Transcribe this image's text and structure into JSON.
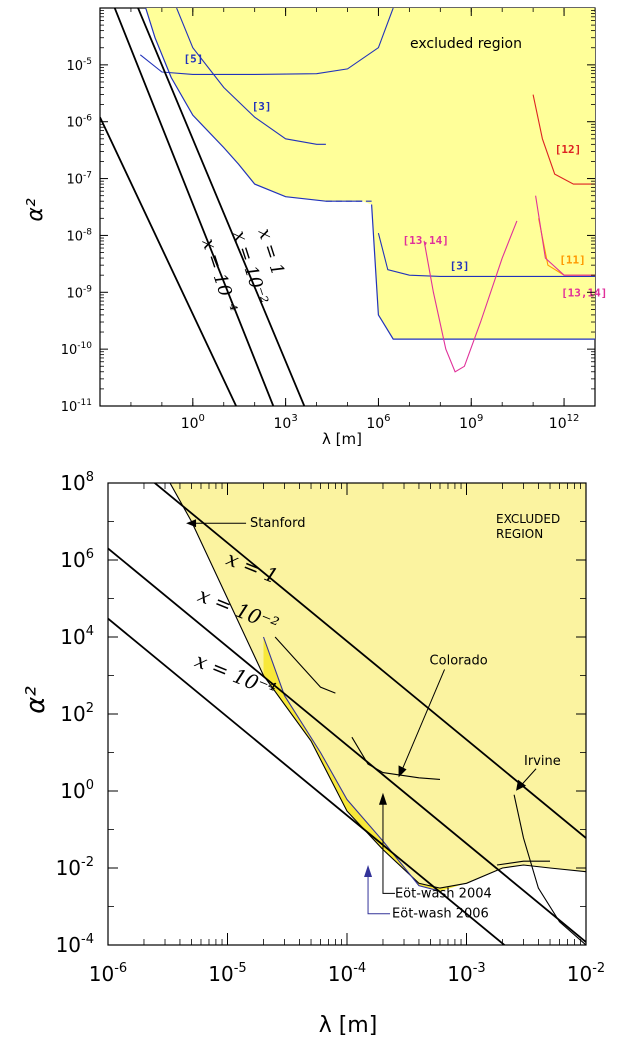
{
  "chart_data": [
    {
      "type": "line",
      "xlabel": "λ [m]",
      "ylabel": "α²",
      "xscale": "log",
      "yscale": "log",
      "xlim": [
        0.001,
        10000000000000
      ],
      "ylim": [
        1e-11,
        0.0001
      ],
      "x_ticks": [
        {
          "exp": "0",
          "value": 1
        },
        {
          "exp": "3",
          "value": 1000
        },
        {
          "exp": "6",
          "value": 1000000
        },
        {
          "exp": "9",
          "value": 1000000000
        },
        {
          "exp": "12",
          "value": 1000000000000
        }
      ],
      "y_ticks": [
        {
          "exp": "-5",
          "value": 1e-05
        },
        {
          "exp": "-6",
          "value": 1e-06
        },
        {
          "exp": "-7",
          "value": 1e-07
        },
        {
          "exp": "-8",
          "value": 1e-08
        },
        {
          "exp": "-9",
          "value": 1e-09
        },
        {
          "exp": "-10",
          "value": 1e-10
        },
        {
          "exp": "-11",
          "value": 1e-11
        }
      ],
      "region_label": "excluded region",
      "excluded_boundary": [
        [
          0.03,
          0.0001
        ],
        [
          0.06,
          3e-05
        ],
        [
          0.2,
          6e-06
        ],
        [
          1,
          1.3e-06
        ],
        [
          10,
          3.5e-07
        ],
        [
          30,
          1.8e-07
        ],
        [
          100,
          8e-08
        ],
        [
          1000,
          4.8e-08
        ],
        [
          20000,
          4e-08
        ],
        [
          300000,
          4e-08
        ],
        [
          600000,
          3.5e-08
        ],
        [
          1000000,
          4e-10
        ],
        [
          3000000,
          1.5e-10
        ],
        [
          10000000000000,
          1.5e-10
        ]
      ],
      "series": [
        {
          "name": "[5]",
          "color": "#2233bb",
          "points": [
            [
              0.02,
              1.5e-05
            ],
            [
              0.1,
              7.5e-06
            ],
            [
              1,
              6.8e-06
            ],
            [
              10,
              6.8e-06
            ],
            [
              100,
              6.8e-06
            ],
            [
              10000,
              7e-06
            ],
            [
              100000,
              8.5e-06
            ],
            [
              1000000,
              2e-05
            ],
            [
              3000000,
              0.0001
            ]
          ]
        },
        {
          "name": "[3]",
          "color": "#2233bb",
          "points": [
            [
              0.3,
              0.0001
            ],
            [
              1,
              2e-05
            ],
            [
              10,
              4e-06
            ],
            [
              100,
              1.2e-06
            ],
            [
              1000,
              5e-07
            ],
            [
              10000,
              4e-07
            ],
            [
              20000,
              4e-07
            ]
          ]
        },
        {
          "name": "[3]",
          "color": "#2233bb",
          "points": [
            [
              1000000,
              1.1e-08
            ],
            [
              2000000,
              2.5e-09
            ],
            [
              10000000,
              2e-09
            ],
            [
              100000000,
              1.9e-09
            ],
            [
              10000000000000,
              1.9e-09
            ]
          ]
        },
        {
          "name": "[13,14]",
          "color": "#e0309a",
          "points": [
            [
              30000000,
              8e-09
            ],
            [
              60000000,
              1e-09
            ],
            [
              150000000,
              1e-10
            ],
            [
              300000000,
              4e-11
            ],
            [
              600000000,
              5e-11
            ],
            [
              2000000000,
              3e-10
            ],
            [
              10000000000,
              4e-09
            ],
            [
              30000000000,
              1.8e-08
            ]
          ]
        },
        {
          "name": "[12]",
          "color": "#dd2222",
          "points": [
            [
              100000000000,
              3e-06
            ],
            [
              200000000000,
              5e-07
            ],
            [
              500000000000,
              1.2e-07
            ],
            [
              2000000000000,
              8e-08
            ],
            [
              10000000000000,
              8e-08
            ]
          ]
        },
        {
          "name": "[11]",
          "color": "#ff9900",
          "points": [
            [
              150000000000,
              2e-08
            ],
            [
              300000000000,
              3e-09
            ],
            [
              1000000000000,
              2e-09
            ],
            [
              10000000000000,
              2e-09
            ]
          ]
        },
        {
          "name": "[13,14]",
          "color": "#e0309a",
          "points": [
            [
              120000000000,
              5e-08
            ],
            [
              250000000000,
              4e-09
            ],
            [
              1000000000000,
              2e-09
            ],
            [
              10000000000000,
              2e-09
            ]
          ]
        }
      ],
      "dashed_segment": [
        [
          20000,
          4e-08
        ],
        [
          600000,
          4e-08
        ]
      ],
      "x_lines": [
        {
          "label": "x = 1",
          "points": [
            [
              0.01,
              0.0002
            ],
            [
              4000,
              1e-11
            ]
          ]
        },
        {
          "label": "x = 10⁻²",
          "points": [
            [
              0.0018,
              0.0002
            ],
            [
              400,
              1e-11
            ]
          ]
        },
        {
          "label": "x = 10⁻⁴",
          "points": [
            [
              0.001,
              1.2e-06
            ],
            [
              25,
              1e-11
            ]
          ]
        }
      ]
    },
    {
      "type": "line",
      "xlabel": "λ [m]",
      "ylabel": "α²",
      "xscale": "log",
      "yscale": "log",
      "xlim": [
        1e-06,
        0.01
      ],
      "ylim": [
        0.0001,
        100000000
      ],
      "x_ticks": [
        {
          "exp": "-6",
          "value": 1e-06
        },
        {
          "exp": "-5",
          "value": 1e-05
        },
        {
          "exp": "-4",
          "value": 0.0001
        },
        {
          "exp": "-3",
          "value": 0.001
        },
        {
          "exp": "-2",
          "value": 0.01
        }
      ],
      "y_ticks": [
        {
          "exp": "8",
          "value": 100000000
        },
        {
          "exp": "6",
          "value": 1000000
        },
        {
          "exp": "4",
          "value": 10000
        },
        {
          "exp": "2",
          "value": 100
        },
        {
          "exp": "0",
          "value": 1
        },
        {
          "exp": "-2",
          "value": 0.01
        },
        {
          "exp": "-4",
          "value": 0.0001
        }
      ],
      "region_label_line1": "EXCLUDED",
      "region_label_line2": "REGION",
      "excluded_2004": [
        [
          3.3e-06,
          100000000
        ],
        [
          5e-06,
          10000000
        ],
        [
          1e-05,
          100000
        ],
        [
          2e-05,
          1000
        ],
        [
          5e-05,
          20
        ],
        [
          0.0001,
          0.3
        ],
        [
          0.0002,
          0.03
        ],
        [
          0.0004,
          0.004
        ],
        [
          0.0006,
          0.003
        ],
        [
          0.001,
          0.004
        ],
        [
          0.002,
          0.01
        ],
        [
          0.003,
          0.012
        ],
        [
          0.005,
          0.01
        ],
        [
          0.01,
          0.008
        ]
      ],
      "excluded_2006": [
        [
          2e-05,
          10000
        ],
        [
          3e-05,
          300
        ],
        [
          6e-05,
          10
        ],
        [
          0.0001,
          0.6
        ],
        [
          0.0002,
          0.05
        ],
        [
          0.0004,
          0.0035
        ],
        [
          0.0006,
          0.0025
        ]
      ],
      "series": [
        {
          "name": "Eöt-wash 2004",
          "color": "#000000",
          "points": [
            [
              3.3e-06,
              100000000
            ],
            [
              5e-06,
              10000000
            ],
            [
              1e-05,
              100000
            ],
            [
              2e-05,
              1000
            ],
            [
              5e-05,
              20
            ],
            [
              0.0001,
              0.3
            ],
            [
              0.0002,
              0.03
            ],
            [
              0.0004,
              0.004
            ],
            [
              0.0006,
              0.003
            ],
            [
              0.001,
              0.004
            ],
            [
              0.002,
              0.01
            ],
            [
              0.003,
              0.012
            ],
            [
              0.005,
              0.01
            ],
            [
              0.01,
              0.008
            ]
          ]
        },
        {
          "name": "Eöt-wash 2006",
          "color": "#333399",
          "points": [
            [
              2e-05,
              10000
            ],
            [
              3e-05,
              300
            ],
            [
              6e-05,
              10
            ],
            [
              0.0001,
              0.6
            ],
            [
              0.0002,
              0.05
            ],
            [
              0.0004,
              0.0035
            ],
            [
              0.0006,
              0.0025
            ]
          ]
        },
        {
          "name": "Stanford",
          "color": "#000000",
          "points": [
            [
              2.5e-05,
              10000
            ],
            [
              4e-05,
              2000
            ],
            [
              6e-05,
              500
            ],
            [
              8e-05,
              350
            ]
          ]
        },
        {
          "name": "Colorado",
          "color": "#000000",
          "points": [
            [
              0.00011,
              25
            ],
            [
              0.00015,
              5
            ],
            [
              0.0002,
              3
            ],
            [
              0.0004,
              2.2
            ],
            [
              0.0006,
              2
            ]
          ]
        },
        {
          "name": "Irvine",
          "color": "#000000",
          "points": [
            [
              0.0025,
              0.8
            ],
            [
              0.003,
              0.06
            ],
            [
              0.004,
              0.003
            ],
            [
              0.006,
              0.0004
            ],
            [
              0.01,
              0.0001
            ]
          ]
        },
        {
          "name": "",
          "color": "#000000",
          "points": [
            [
              0.0018,
              0.012
            ],
            [
              0.003,
              0.015
            ],
            [
              0.005,
              0.015
            ]
          ]
        }
      ],
      "x_lines": [
        {
          "label": "x = 1",
          "points": [
            [
              1e-06,
              1000000000
            ],
            [
              0.01,
              0.06
            ]
          ]
        },
        {
          "label": "x = 10⁻²",
          "points": [
            [
              1e-06,
              2000000
            ],
            [
              0.01,
              0.00012
            ]
          ]
        },
        {
          "label": "x = 10⁻⁴",
          "points": [
            [
              1e-06,
              30000
            ],
            [
              0.01,
              1.8e-06
            ]
          ]
        }
      ],
      "annotations": [
        {
          "text": "Stanford",
          "point": [
            4.5e-06,
            8000000
          ]
        },
        {
          "text": "Colorado",
          "point": [
            0.00025,
            2
          ]
        },
        {
          "text": "Irvine",
          "point": [
            0.0025,
            0.9
          ]
        },
        {
          "text": "Eöt-wash 2004",
          "point": [
            0.0002,
            0.9
          ]
        },
        {
          "text": "Eöt-wash 2006",
          "point": [
            0.00015,
            0.012
          ]
        }
      ]
    }
  ],
  "colors": {
    "excluded_fill": "#ffff99",
    "excluded_fill_light": "#fbf3a0",
    "excluded_fill_2006": "#f8e83a",
    "axis": "#000000",
    "blue": "#2233bb",
    "magenta": "#e0309a",
    "red": "#dd2222",
    "orange": "#ff9900",
    "eotwash2006": "#333399"
  }
}
